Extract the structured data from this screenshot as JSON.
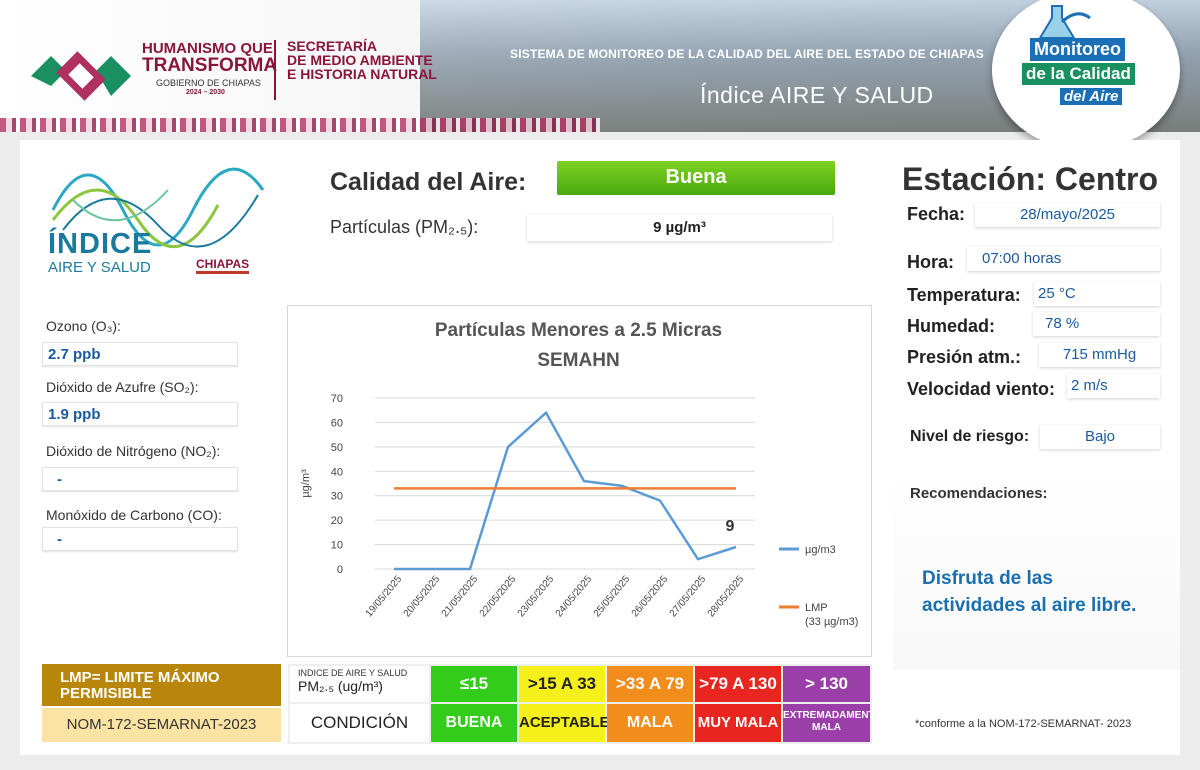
{
  "header": {
    "gov_line1": "HUMANISMO QUE",
    "gov_line2": "TRANSFORMA",
    "gov_line3": "GOBIERNO DE CHIAPAS",
    "gov_line4": "2024 – 2030",
    "secretaria_line1": "SECRETARÍA",
    "secretaria_line2": "DE MEDIO AMBIENTE",
    "secretaria_line3": "E HISTORIA NATURAL",
    "sistema": "SISTEMA DE MONITOREO DE LA CALIDAD DEL AIRE DEL ESTADO DE CHIAPAS",
    "indice": "Índice AIRE Y SALUD",
    "badge_line1": "Monitoreo",
    "badge_line2": "de la Calidad",
    "badge_line3": "del Aire"
  },
  "logo": {
    "title": "ÍNDICE",
    "subtitle": "AIRE Y SALUD",
    "state": "CHIAPAS"
  },
  "pollutants": [
    {
      "label": "Ozono (O₃):",
      "value": "2.7 ppb"
    },
    {
      "label": "Dióxido de Azufre  (SO₂):",
      "value": "1.9 ppb"
    },
    {
      "label": "Dióxido de Nitrógeno (NO₂):",
      "value": "-"
    },
    {
      "label": "Monóxido de Carbono (CO):",
      "value": "-"
    }
  ],
  "calidad": {
    "label": "Calidad del Aire:",
    "value": "Buena",
    "pm_label": "Partículas (PM₂.₅):",
    "pm_value": "9 µg/m³"
  },
  "station": {
    "title": "Estación: Centro",
    "fecha_label": "Fecha:",
    "fecha": "28/mayo/2025",
    "hora_label": "Hora:",
    "hora": "07:00 horas",
    "temp_label": "Temperatura:",
    "temp": "25 °C",
    "hum_label": "Humedad:",
    "hum": "78 %",
    "pres_label": "Presión atm.:",
    "pres": "715 mmHg",
    "viento_label": "Velocidad viento:",
    "viento": "2 m/s",
    "riesgo_label": "Nivel de riesgo:",
    "riesgo": "Bajo",
    "rec_label": "Recomendaciones:",
    "rec_text": "Disfruta de las actividades al aire libre.",
    "nota": "*conforme a la NOM-172-SEMARNAT- 2023"
  },
  "legend": {
    "lmp": "LMP= LIMITE MÁXIMO PERMISIBLE",
    "nom": "NOM-172-SEMARNAT-2023",
    "header_line1": "INDICE DE AIRE Y SALUD",
    "header_line2": "PM₂.₅ (ug/m³)",
    "condicion": "CONDICIÓN",
    "ranges": [
      "≤15",
      ">15 A 33",
      ">33 A 79",
      ">79 A 130",
      "> 130"
    ],
    "conditions": [
      "BUENA",
      "ACEPTABLE",
      "MALA",
      "MUY MALA",
      "EXTREMADAMENTE MALA"
    ],
    "colors": [
      "#33cc1a",
      "#f5f01a",
      "#f28c1a",
      "#e8251f",
      "#9b3fa8"
    ]
  },
  "chart_data": {
    "type": "line",
    "title": "Partículas  Menores a 2.5 Micras",
    "subtitle": "SEMAHN",
    "ylabel": "µg/m³",
    "ylim": [
      0,
      70
    ],
    "yticks": [
      0,
      10,
      20,
      30,
      40,
      50,
      60,
      70
    ],
    "categories": [
      "19/05/2025",
      "20/05/2025",
      "21/05/2025",
      "22/05/2025",
      "23/05/2025",
      "24/05/2025",
      "25/05/2025",
      "26/05/2025",
      "27/05/2025",
      "28/05/2025"
    ],
    "series": [
      {
        "name": "µg/m3",
        "color": "#5b9bd5",
        "values": [
          0,
          0,
          0,
          50,
          64,
          36,
          34,
          28,
          4,
          9
        ]
      },
      {
        "name": "LMP (33 µg/m3)",
        "color": "#ed7d31",
        "values": [
          33,
          33,
          33,
          33,
          33,
          33,
          33,
          33,
          33,
          33
        ]
      }
    ],
    "annotation": "9",
    "grid": true,
    "legend_position": "right"
  }
}
